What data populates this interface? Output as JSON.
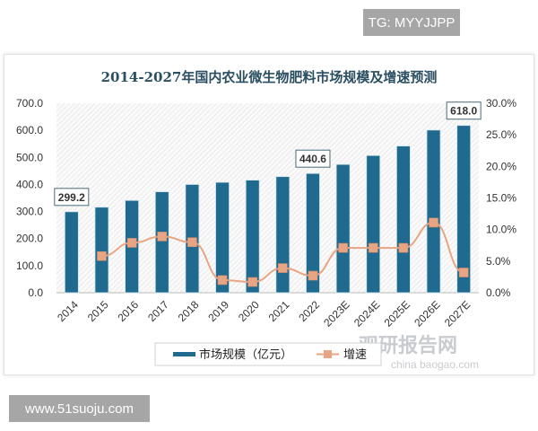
{
  "tg_label": "TG: MYYJJPP",
  "site_label": "www.51suoju.com",
  "watermark": {
    "name": "观研报告网",
    "sub": "china baogao.com"
  },
  "chart_data": {
    "type": "bar",
    "title": "2014-2027年国内农业微生物肥料市场规模及增速预测",
    "categories": [
      "2014",
      "2015",
      "2016",
      "2017",
      "2018",
      "2019",
      "2020",
      "2021",
      "2022",
      "2023E",
      "2024E",
      "2025E",
      "2026E",
      "2027E"
    ],
    "series": [
      {
        "name": "市场规模（亿元）",
        "type": "bar",
        "axis": "left",
        "color": "#1f6a8e",
        "values": [
          299.2,
          316,
          341,
          373,
          400,
          408,
          416,
          429,
          440.6,
          474,
          507,
          542,
          601,
          618.0
        ]
      },
      {
        "name": "增速",
        "type": "line",
        "axis": "right",
        "color": "#e8a584",
        "values": [
          null,
          5.8,
          7.9,
          8.9,
          8.0,
          2.0,
          1.7,
          3.9,
          2.7,
          7.1,
          7.1,
          7.1,
          11.1,
          3.2
        ]
      }
    ],
    "data_labels": [
      {
        "index": 0,
        "text": "299.2"
      },
      {
        "index": 8,
        "text": "440.6"
      },
      {
        "index": 13,
        "text": "618.0"
      }
    ],
    "left_axis": {
      "ylim": [
        0,
        700
      ],
      "ticks": [
        "0.0",
        "100.0",
        "200.0",
        "300.0",
        "400.0",
        "500.0",
        "600.0",
        "700.0"
      ]
    },
    "right_axis": {
      "ylim": [
        0,
        30
      ],
      "ticks": [
        "0.0%",
        "5.0%",
        "10.0%",
        "15.0%",
        "20.0%",
        "25.0%",
        "30.0%"
      ]
    },
    "legend": {
      "placement": "bottom",
      "entries": [
        "市场规模（亿元）",
        "增速"
      ]
    }
  }
}
